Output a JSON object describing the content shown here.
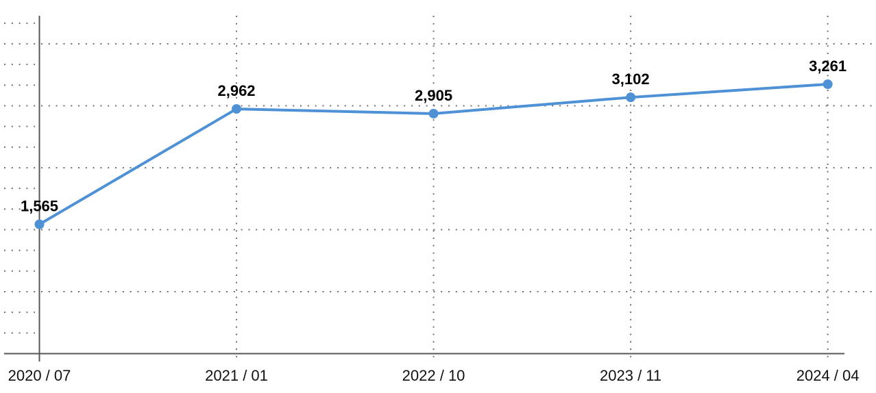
{
  "chart_data": {
    "type": "line",
    "title": "",
    "xlabel": "",
    "ylabel": "",
    "x_labels": [
      "2020 / 07",
      "2021 / 01",
      "2022 / 10",
      "2023 / 11",
      "2024 / 04"
    ],
    "values": [
      1565,
      2962,
      2905,
      3102,
      3261
    ],
    "point_labels": [
      "1,565",
      "2,962",
      "2,905",
      "3,102",
      "3,261"
    ],
    "ylim": [
      0,
      4100
    ],
    "y_tick_step": 250,
    "y_major_line_step": 750,
    "grid_style": "dotted",
    "legend": "none",
    "colors": {
      "line": "#4e91d5",
      "marker": "#4e91d5",
      "grid_dot": "#6f6f6f",
      "axis": "#565656",
      "point_label_text": "#000000",
      "axis_label_text": "#111111"
    }
  }
}
